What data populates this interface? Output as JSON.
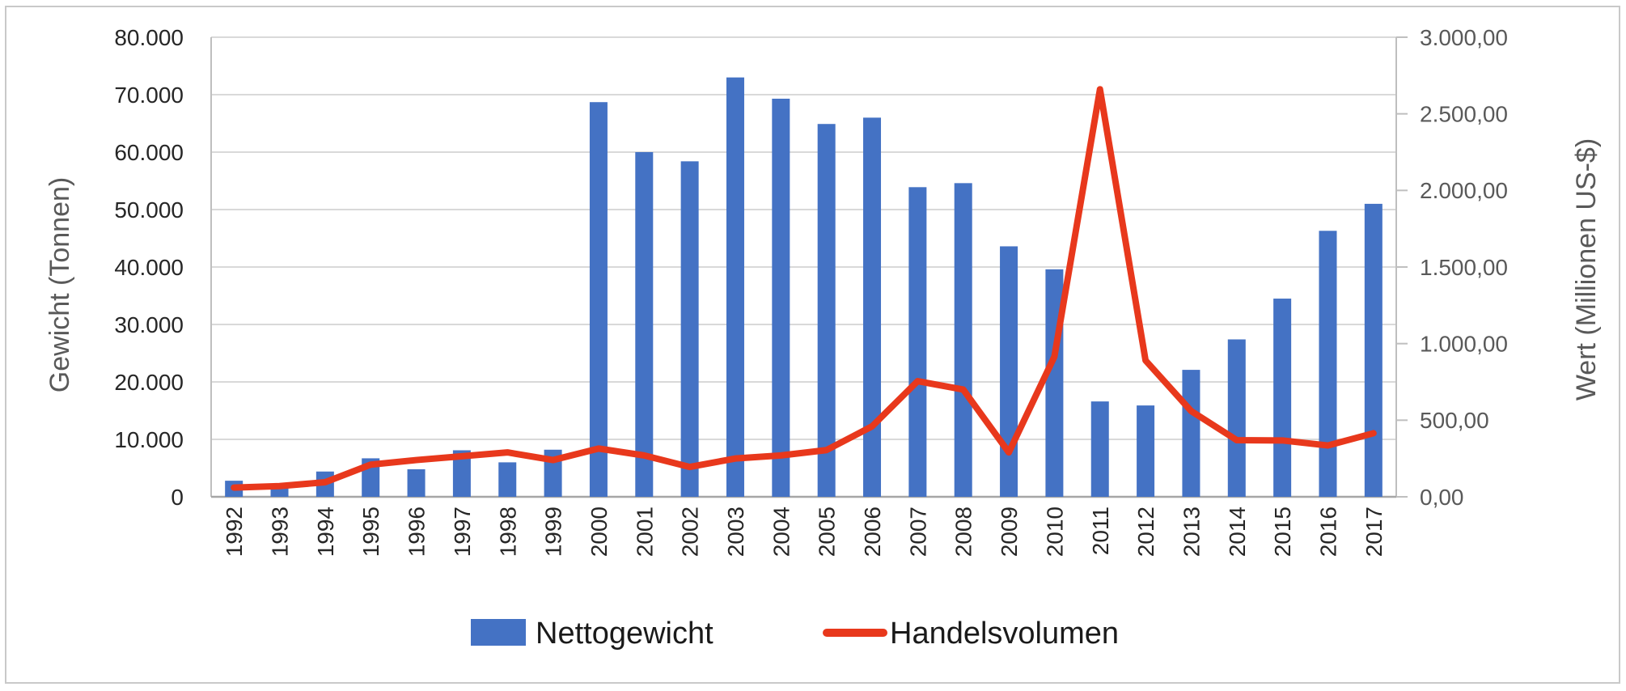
{
  "chart_data": {
    "type": "combo-bar-line",
    "title": "",
    "categories": [
      "1992",
      "1993",
      "1994",
      "1995",
      "1996",
      "1997",
      "1998",
      "1999",
      "2000",
      "2001",
      "2002",
      "2003",
      "2004",
      "2005",
      "2006",
      "2007",
      "2008",
      "2009",
      "2010",
      "2011",
      "2012",
      "2013",
      "2014",
      "2015",
      "2016",
      "2017"
    ],
    "series": [
      {
        "name": "Nettogewicht",
        "type": "bar",
        "axis": "left",
        "color": "#4472C4",
        "values": [
          2800,
          1800,
          4400,
          6700,
          4800,
          8100,
          6000,
          8200,
          68700,
          60000,
          58400,
          73000,
          69300,
          64900,
          66000,
          53900,
          54600,
          43600,
          39600,
          16600,
          15900,
          22100,
          27400,
          34500,
          46300,
          51000
        ]
      },
      {
        "name": "Handelsvolumen",
        "type": "line",
        "axis": "right",
        "color": "#E8381C",
        "values": [
          60,
          70,
          95,
          210,
          240,
          265,
          290,
          240,
          315,
          270,
          195,
          250,
          270,
          305,
          460,
          755,
          700,
          290,
          915,
          2660,
          890,
          560,
          370,
          368,
          335,
          415
        ]
      }
    ],
    "left_axis": {
      "title": "Gewicht (Tonnen)",
      "min": 0,
      "max": 80000,
      "step": 10000,
      "tick_labels": [
        "0",
        "10.000",
        "20.000",
        "30.000",
        "40.000",
        "50.000",
        "60.000",
        "70.000",
        "80.000"
      ]
    },
    "right_axis": {
      "title": "Wert (Millionen US-$)",
      "min": 0,
      "max": 3000,
      "step": 500,
      "tick_labels": [
        "0,00",
        "500,00",
        "1.000,00",
        "1.500,00",
        "2.000,00",
        "2.500,00",
        "3.000,00"
      ]
    },
    "legend": {
      "position": "bottom",
      "items": [
        {
          "label": "Nettogewicht",
          "marker": "rect",
          "color": "#4472C4"
        },
        {
          "label": "Handelsvolumen",
          "marker": "line",
          "color": "#E8381C"
        }
      ]
    },
    "grid": true,
    "colors": {
      "gridline": "#D9D9D9",
      "axis_line": "#BFBFBF",
      "baseline": "#A6A6A6",
      "tick_label_left": "#262626",
      "tick_label_right": "#595959",
      "category_label": "#262626",
      "axis_title": "#595959",
      "legend_text": "#1a1a1a"
    }
  }
}
